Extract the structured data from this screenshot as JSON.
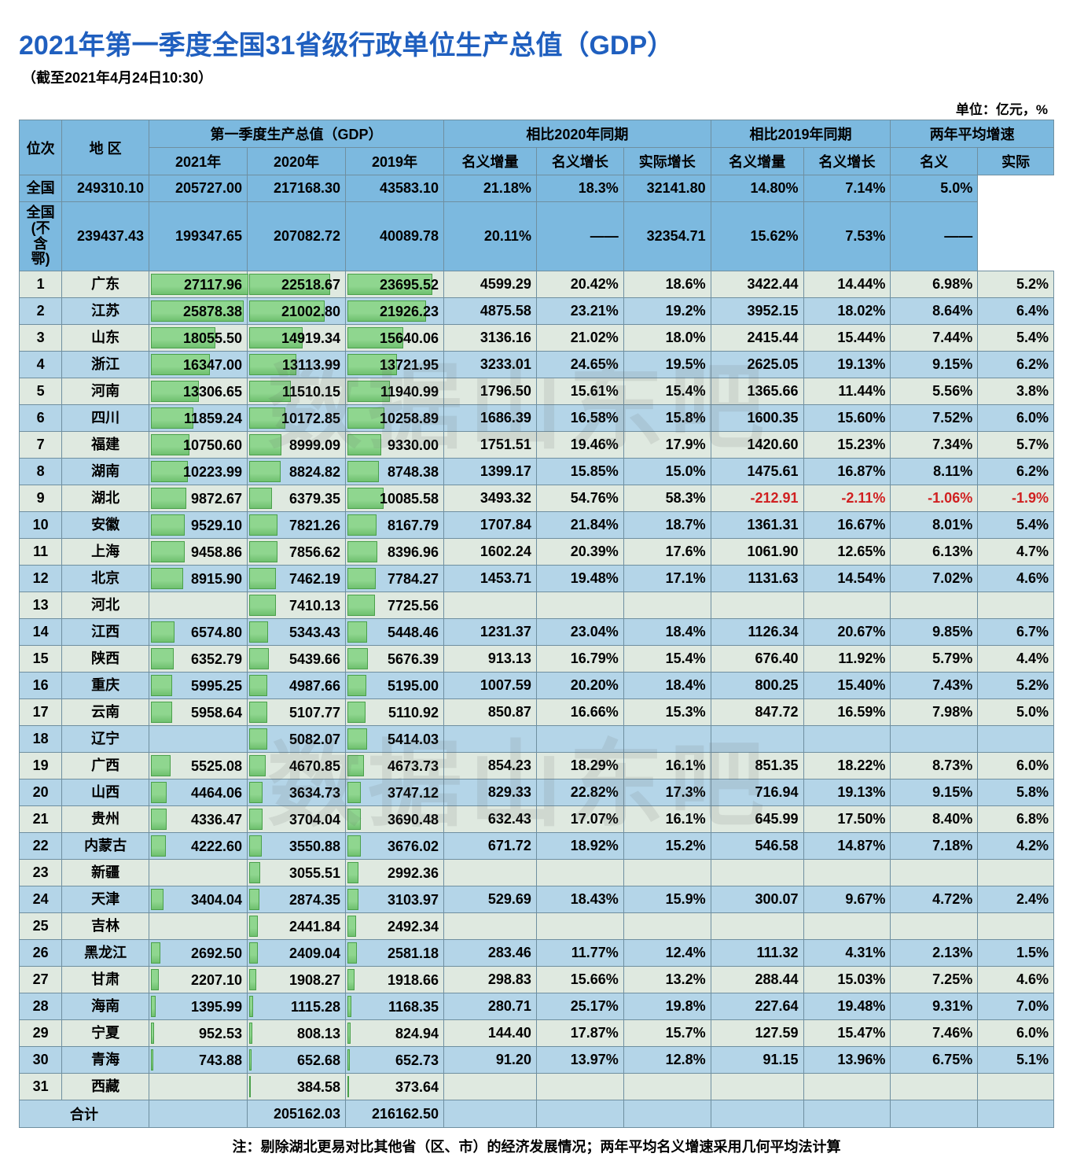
{
  "title": "2021年第一季度全国31省级行政单位生产总值（GDP）",
  "title_color": "#1f5fbf",
  "subtitle": "（截至2021年4月24日10:30）",
  "unit_label": "单位：亿元，%",
  "footnote": "注：剔除湖北更易对比其他省（区、市）的经济发展情况；两年平均名义增速采用几何平均法计算",
  "watermark_text": "数据山东吧",
  "colors": {
    "header_bg": "#7cb9df",
    "row_odd": "#dfe9e0",
    "row_even": "#b4d5e8",
    "border": "#6f8fa0",
    "bar_fill": "#8fd68f",
    "bar_border": "#4aa04a",
    "negative": "#d02020"
  },
  "bar_max": 27200,
  "header": {
    "rank": "位次",
    "region": "地 区",
    "group_gdp": "第一季度生产总值（GDP）",
    "group_vs2020": "相比2020年同期",
    "group_vs2019": "相比2019年同期",
    "group_2yavg": "两年平均增速",
    "y2021": "2021年",
    "y2020": "2020年",
    "y2019": "2019年",
    "nom_inc": "名义增量",
    "nom_gr": "名义增长",
    "real_gr": "实际增长",
    "nominal": "名义",
    "real": "实际"
  },
  "national_rows": [
    {
      "region": "全国",
      "g2021": "249310.10",
      "g2020": "205727.00",
      "g2019": "217168.30",
      "d20_inc": "43583.10",
      "d20_nom": "21.18%",
      "d20_real": "18.3%",
      "d19_inc": "32141.80",
      "d19_nom": "14.80%",
      "avg_nom": "7.14%",
      "avg_real": "5.0%"
    },
    {
      "region": "全国\n(不含鄂)",
      "g2021": "239437.43",
      "g2020": "199347.65",
      "g2019": "207082.72",
      "d20_inc": "40089.78",
      "d20_nom": "20.11%",
      "d20_real": "——",
      "d19_inc": "32354.71",
      "d19_nom": "15.62%",
      "avg_nom": "7.53%",
      "avg_real": "——"
    }
  ],
  "rows": [
    {
      "rank": 1,
      "region": "广东",
      "g2021": "27117.96",
      "g2020": "22518.67",
      "g2019": "23695.52",
      "d20_inc": "4599.29",
      "d20_nom": "20.42%",
      "d20_real": "18.6%",
      "d19_inc": "3422.44",
      "d19_nom": "14.44%",
      "avg_nom": "6.98%",
      "avg_real": "5.2%"
    },
    {
      "rank": 2,
      "region": "江苏",
      "g2021": "25878.38",
      "g2020": "21002.80",
      "g2019": "21926.23",
      "d20_inc": "4875.58",
      "d20_nom": "23.21%",
      "d20_real": "19.2%",
      "d19_inc": "3952.15",
      "d19_nom": "18.02%",
      "avg_nom": "8.64%",
      "avg_real": "6.4%"
    },
    {
      "rank": 3,
      "region": "山东",
      "g2021": "18055.50",
      "g2020": "14919.34",
      "g2019": "15640.06",
      "d20_inc": "3136.16",
      "d20_nom": "21.02%",
      "d20_real": "18.0%",
      "d19_inc": "2415.44",
      "d19_nom": "15.44%",
      "avg_nom": "7.44%",
      "avg_real": "5.4%"
    },
    {
      "rank": 4,
      "region": "浙江",
      "g2021": "16347.00",
      "g2020": "13113.99",
      "g2019": "13721.95",
      "d20_inc": "3233.01",
      "d20_nom": "24.65%",
      "d20_real": "19.5%",
      "d19_inc": "2625.05",
      "d19_nom": "19.13%",
      "avg_nom": "9.15%",
      "avg_real": "6.2%"
    },
    {
      "rank": 5,
      "region": "河南",
      "g2021": "13306.65",
      "g2020": "11510.15",
      "g2019": "11940.99",
      "d20_inc": "1796.50",
      "d20_nom": "15.61%",
      "d20_real": "15.4%",
      "d19_inc": "1365.66",
      "d19_nom": "11.44%",
      "avg_nom": "5.56%",
      "avg_real": "3.8%"
    },
    {
      "rank": 6,
      "region": "四川",
      "g2021": "11859.24",
      "g2020": "10172.85",
      "g2019": "10258.89",
      "d20_inc": "1686.39",
      "d20_nom": "16.58%",
      "d20_real": "15.8%",
      "d19_inc": "1600.35",
      "d19_nom": "15.60%",
      "avg_nom": "7.52%",
      "avg_real": "6.0%"
    },
    {
      "rank": 7,
      "region": "福建",
      "g2021": "10750.60",
      "g2020": "8999.09",
      "g2019": "9330.00",
      "d20_inc": "1751.51",
      "d20_nom": "19.46%",
      "d20_real": "17.9%",
      "d19_inc": "1420.60",
      "d19_nom": "15.23%",
      "avg_nom": "7.34%",
      "avg_real": "5.7%"
    },
    {
      "rank": 8,
      "region": "湖南",
      "g2021": "10223.99",
      "g2020": "8824.82",
      "g2019": "8748.38",
      "d20_inc": "1399.17",
      "d20_nom": "15.85%",
      "d20_real": "15.0%",
      "d19_inc": "1475.61",
      "d19_nom": "16.87%",
      "avg_nom": "8.11%",
      "avg_real": "6.2%"
    },
    {
      "rank": 9,
      "region": "湖北",
      "g2021": "9872.67",
      "g2020": "6379.35",
      "g2019": "10085.58",
      "d20_inc": "3493.32",
      "d20_nom": "54.76%",
      "d20_real": "58.3%",
      "d19_inc": "-212.91",
      "d19_nom": "-2.11%",
      "avg_nom": "-1.06%",
      "avg_real": "-1.9%",
      "neg": true
    },
    {
      "rank": 10,
      "region": "安徽",
      "g2021": "9529.10",
      "g2020": "7821.26",
      "g2019": "8167.79",
      "d20_inc": "1707.84",
      "d20_nom": "21.84%",
      "d20_real": "18.7%",
      "d19_inc": "1361.31",
      "d19_nom": "16.67%",
      "avg_nom": "8.01%",
      "avg_real": "5.4%"
    },
    {
      "rank": 11,
      "region": "上海",
      "g2021": "9458.86",
      "g2020": "7856.62",
      "g2019": "8396.96",
      "d20_inc": "1602.24",
      "d20_nom": "20.39%",
      "d20_real": "17.6%",
      "d19_inc": "1061.90",
      "d19_nom": "12.65%",
      "avg_nom": "6.13%",
      "avg_real": "4.7%"
    },
    {
      "rank": 12,
      "region": "北京",
      "g2021": "8915.90",
      "g2020": "7462.19",
      "g2019": "7784.27",
      "d20_inc": "1453.71",
      "d20_nom": "19.48%",
      "d20_real": "17.1%",
      "d19_inc": "1131.63",
      "d19_nom": "14.54%",
      "avg_nom": "7.02%",
      "avg_real": "4.6%"
    },
    {
      "rank": 13,
      "region": "河北",
      "g2021": "",
      "g2020": "7410.13",
      "g2019": "7725.56",
      "d20_inc": "",
      "d20_nom": "",
      "d20_real": "",
      "d19_inc": "",
      "d19_nom": "",
      "avg_nom": "",
      "avg_real": ""
    },
    {
      "rank": 14,
      "region": "江西",
      "g2021": "6574.80",
      "g2020": "5343.43",
      "g2019": "5448.46",
      "d20_inc": "1231.37",
      "d20_nom": "23.04%",
      "d20_real": "18.4%",
      "d19_inc": "1126.34",
      "d19_nom": "20.67%",
      "avg_nom": "9.85%",
      "avg_real": "6.7%"
    },
    {
      "rank": 15,
      "region": "陕西",
      "g2021": "6352.79",
      "g2020": "5439.66",
      "g2019": "5676.39",
      "d20_inc": "913.13",
      "d20_nom": "16.79%",
      "d20_real": "15.4%",
      "d19_inc": "676.40",
      "d19_nom": "11.92%",
      "avg_nom": "5.79%",
      "avg_real": "4.4%"
    },
    {
      "rank": 16,
      "region": "重庆",
      "g2021": "5995.25",
      "g2020": "4987.66",
      "g2019": "5195.00",
      "d20_inc": "1007.59",
      "d20_nom": "20.20%",
      "d20_real": "18.4%",
      "d19_inc": "800.25",
      "d19_nom": "15.40%",
      "avg_nom": "7.43%",
      "avg_real": "5.2%"
    },
    {
      "rank": 17,
      "region": "云南",
      "g2021": "5958.64",
      "g2020": "5107.77",
      "g2019": "5110.92",
      "d20_inc": "850.87",
      "d20_nom": "16.66%",
      "d20_real": "15.3%",
      "d19_inc": "847.72",
      "d19_nom": "16.59%",
      "avg_nom": "7.98%",
      "avg_real": "5.0%"
    },
    {
      "rank": 18,
      "region": "辽宁",
      "g2021": "",
      "g2020": "5082.07",
      "g2019": "5414.03",
      "d20_inc": "",
      "d20_nom": "",
      "d20_real": "",
      "d19_inc": "",
      "d19_nom": "",
      "avg_nom": "",
      "avg_real": ""
    },
    {
      "rank": 19,
      "region": "广西",
      "g2021": "5525.08",
      "g2020": "4670.85",
      "g2019": "4673.73",
      "d20_inc": "854.23",
      "d20_nom": "18.29%",
      "d20_real": "16.1%",
      "d19_inc": "851.35",
      "d19_nom": "18.22%",
      "avg_nom": "8.73%",
      "avg_real": "6.0%"
    },
    {
      "rank": 20,
      "region": "山西",
      "g2021": "4464.06",
      "g2020": "3634.73",
      "g2019": "3747.12",
      "d20_inc": "829.33",
      "d20_nom": "22.82%",
      "d20_real": "17.3%",
      "d19_inc": "716.94",
      "d19_nom": "19.13%",
      "avg_nom": "9.15%",
      "avg_real": "5.8%"
    },
    {
      "rank": 21,
      "region": "贵州",
      "g2021": "4336.47",
      "g2020": "3704.04",
      "g2019": "3690.48",
      "d20_inc": "632.43",
      "d20_nom": "17.07%",
      "d20_real": "16.1%",
      "d19_inc": "645.99",
      "d19_nom": "17.50%",
      "avg_nom": "8.40%",
      "avg_real": "6.8%"
    },
    {
      "rank": 22,
      "region": "内蒙古",
      "g2021": "4222.60",
      "g2020": "3550.88",
      "g2019": "3676.02",
      "d20_inc": "671.72",
      "d20_nom": "18.92%",
      "d20_real": "15.2%",
      "d19_inc": "546.58",
      "d19_nom": "14.87%",
      "avg_nom": "7.18%",
      "avg_real": "4.2%"
    },
    {
      "rank": 23,
      "region": "新疆",
      "g2021": "",
      "g2020": "3055.51",
      "g2019": "2992.36",
      "d20_inc": "",
      "d20_nom": "",
      "d20_real": "",
      "d19_inc": "",
      "d19_nom": "",
      "avg_nom": "",
      "avg_real": ""
    },
    {
      "rank": 24,
      "region": "天津",
      "g2021": "3404.04",
      "g2020": "2874.35",
      "g2019": "3103.97",
      "d20_inc": "529.69",
      "d20_nom": "18.43%",
      "d20_real": "15.9%",
      "d19_inc": "300.07",
      "d19_nom": "9.67%",
      "avg_nom": "4.72%",
      "avg_real": "2.4%"
    },
    {
      "rank": 25,
      "region": "吉林",
      "g2021": "",
      "g2020": "2441.84",
      "g2019": "2492.34",
      "d20_inc": "",
      "d20_nom": "",
      "d20_real": "",
      "d19_inc": "",
      "d19_nom": "",
      "avg_nom": "",
      "avg_real": ""
    },
    {
      "rank": 26,
      "region": "黑龙江",
      "g2021": "2692.50",
      "g2020": "2409.04",
      "g2019": "2581.18",
      "d20_inc": "283.46",
      "d20_nom": "11.77%",
      "d20_real": "12.4%",
      "d19_inc": "111.32",
      "d19_nom": "4.31%",
      "avg_nom": "2.13%",
      "avg_real": "1.5%"
    },
    {
      "rank": 27,
      "region": "甘肃",
      "g2021": "2207.10",
      "g2020": "1908.27",
      "g2019": "1918.66",
      "d20_inc": "298.83",
      "d20_nom": "15.66%",
      "d20_real": "13.2%",
      "d19_inc": "288.44",
      "d19_nom": "15.03%",
      "avg_nom": "7.25%",
      "avg_real": "4.6%"
    },
    {
      "rank": 28,
      "region": "海南",
      "g2021": "1395.99",
      "g2020": "1115.28",
      "g2019": "1168.35",
      "d20_inc": "280.71",
      "d20_nom": "25.17%",
      "d20_real": "19.8%",
      "d19_inc": "227.64",
      "d19_nom": "19.48%",
      "avg_nom": "9.31%",
      "avg_real": "7.0%"
    },
    {
      "rank": 29,
      "region": "宁夏",
      "g2021": "952.53",
      "g2020": "808.13",
      "g2019": "824.94",
      "d20_inc": "144.40",
      "d20_nom": "17.87%",
      "d20_real": "15.7%",
      "d19_inc": "127.59",
      "d19_nom": "15.47%",
      "avg_nom": "7.46%",
      "avg_real": "6.0%"
    },
    {
      "rank": 30,
      "region": "青海",
      "g2021": "743.88",
      "g2020": "652.68",
      "g2019": "652.73",
      "d20_inc": "91.20",
      "d20_nom": "13.97%",
      "d20_real": "12.8%",
      "d19_inc": "91.15",
      "d19_nom": "13.96%",
      "avg_nom": "6.75%",
      "avg_real": "5.1%"
    },
    {
      "rank": 31,
      "region": "西藏",
      "g2021": "",
      "g2020": "384.58",
      "g2019": "373.64",
      "d20_inc": "",
      "d20_nom": "",
      "d20_real": "",
      "d19_inc": "",
      "d19_nom": "",
      "avg_nom": "",
      "avg_real": ""
    }
  ],
  "total_row": {
    "region": "合计",
    "g2021": "",
    "g2020": "205162.03",
    "g2019": "216162.50",
    "d20_inc": "",
    "d20_nom": "",
    "d20_real": "",
    "d19_inc": "",
    "d19_nom": "",
    "avg_nom": "",
    "avg_real": ""
  }
}
